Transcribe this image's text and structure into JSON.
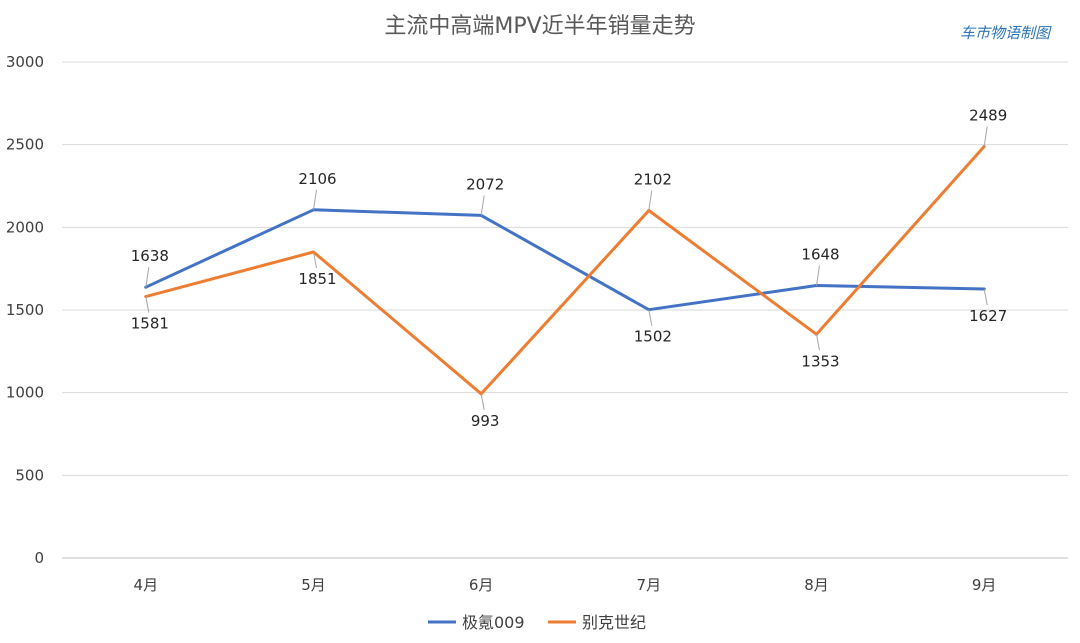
{
  "chart_data": {
    "type": "line",
    "title": "主流中高端MPV近半年销量走势",
    "watermark": "车市物语制图",
    "categories": [
      "4月",
      "5月",
      "6月",
      "7月",
      "8月",
      "9月"
    ],
    "ylim": [
      0,
      3000
    ],
    "yticks": [
      0,
      500,
      1000,
      1500,
      2000,
      2500,
      3000
    ],
    "grid": true,
    "legend_position": "bottom",
    "series": [
      {
        "name": "极氪009",
        "color": "#4472c4",
        "values": [
          1638,
          2106,
          2072,
          1502,
          1648,
          1627
        ]
      },
      {
        "name": "别克世纪",
        "color": "#ed7d31",
        "values": [
          1581,
          1851,
          993,
          2102,
          1353,
          2489
        ]
      }
    ]
  }
}
